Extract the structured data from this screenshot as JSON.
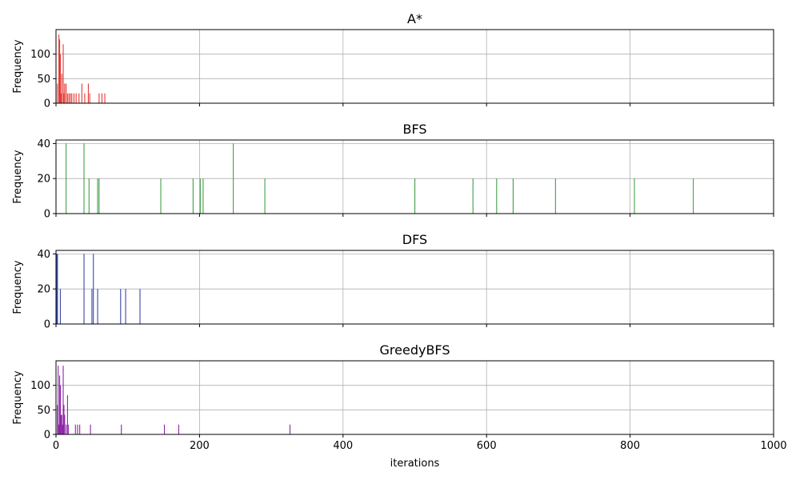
{
  "chart_data": [
    {
      "type": "bar",
      "title": "A*",
      "ylabel": "Frequency",
      "color": "#e53935",
      "xlim": [
        0,
        1000
      ],
      "ylim": [
        0,
        150
      ],
      "yticks": [
        0,
        50,
        100
      ],
      "grid": true,
      "bars": [
        {
          "x": 2,
          "y": 40
        },
        {
          "x": 4,
          "y": 140
        },
        {
          "x": 5,
          "y": 130
        },
        {
          "x": 6,
          "y": 100
        },
        {
          "x": 7,
          "y": 20
        },
        {
          "x": 8,
          "y": 60
        },
        {
          "x": 10,
          "y": 120
        },
        {
          "x": 11,
          "y": 20
        },
        {
          "x": 12,
          "y": 40
        },
        {
          "x": 14,
          "y": 40
        },
        {
          "x": 16,
          "y": 20
        },
        {
          "x": 18,
          "y": 20
        },
        {
          "x": 20,
          "y": 20
        },
        {
          "x": 22,
          "y": 20
        },
        {
          "x": 25,
          "y": 20
        },
        {
          "x": 28,
          "y": 20
        },
        {
          "x": 32,
          "y": 20
        },
        {
          "x": 36,
          "y": 40
        },
        {
          "x": 40,
          "y": 20
        },
        {
          "x": 45,
          "y": 40
        },
        {
          "x": 47,
          "y": 20
        },
        {
          "x": 60,
          "y": 20
        },
        {
          "x": 64,
          "y": 20
        },
        {
          "x": 68,
          "y": 20
        }
      ]
    },
    {
      "type": "bar",
      "title": "BFS",
      "ylabel": "Frequency",
      "color": "#43a047",
      "xlim": [
        0,
        1000
      ],
      "ylim": [
        0,
        42
      ],
      "yticks": [
        0,
        20,
        40
      ],
      "grid": true,
      "bars": [
        {
          "x": 14,
          "y": 40
        },
        {
          "x": 39,
          "y": 40
        },
        {
          "x": 46,
          "y": 20
        },
        {
          "x": 58,
          "y": 20
        },
        {
          "x": 60,
          "y": 20
        },
        {
          "x": 146,
          "y": 20
        },
        {
          "x": 191,
          "y": 20
        },
        {
          "x": 201,
          "y": 20
        },
        {
          "x": 205,
          "y": 20
        },
        {
          "x": 247,
          "y": 40
        },
        {
          "x": 291,
          "y": 20
        },
        {
          "x": 500,
          "y": 20
        },
        {
          "x": 581,
          "y": 20
        },
        {
          "x": 614,
          "y": 20
        },
        {
          "x": 637,
          "y": 20
        },
        {
          "x": 696,
          "y": 20
        },
        {
          "x": 806,
          "y": 20
        },
        {
          "x": 888,
          "y": 20
        }
      ]
    },
    {
      "type": "bar",
      "title": "DFS",
      "ylabel": "Frequency",
      "color": "#3949ab",
      "xlim": [
        0,
        1000
      ],
      "ylim": [
        0,
        42
      ],
      "yticks": [
        0,
        20,
        40
      ],
      "grid": true,
      "bars": [
        {
          "x": 1,
          "y": 40
        },
        {
          "x": 2,
          "y": 40
        },
        {
          "x": 6,
          "y": 20
        },
        {
          "x": 39,
          "y": 40
        },
        {
          "x": 50,
          "y": 20
        },
        {
          "x": 52,
          "y": 40
        },
        {
          "x": 58,
          "y": 20
        },
        {
          "x": 90,
          "y": 20
        },
        {
          "x": 97,
          "y": 20
        },
        {
          "x": 117,
          "y": 20
        }
      ]
    },
    {
      "type": "bar",
      "title": "GreedyBFS",
      "ylabel": "Frequency",
      "color": "#8e24aa",
      "xlim": [
        0,
        1000
      ],
      "ylim": [
        0,
        150
      ],
      "yticks": [
        0,
        50,
        100
      ],
      "grid": true,
      "xlabel": "iterations",
      "xticks": [
        0,
        200,
        400,
        600,
        800,
        1000
      ],
      "bars": [
        {
          "x": 2,
          "y": 60
        },
        {
          "x": 3,
          "y": 140
        },
        {
          "x": 4,
          "y": 20
        },
        {
          "x": 5,
          "y": 120
        },
        {
          "x": 6,
          "y": 100
        },
        {
          "x": 7,
          "y": 40
        },
        {
          "x": 8,
          "y": 40
        },
        {
          "x": 9,
          "y": 20
        },
        {
          "x": 10,
          "y": 140
        },
        {
          "x": 11,
          "y": 60
        },
        {
          "x": 12,
          "y": 40
        },
        {
          "x": 14,
          "y": 20
        },
        {
          "x": 16,
          "y": 80
        },
        {
          "x": 17,
          "y": 20
        },
        {
          "x": 27,
          "y": 20
        },
        {
          "x": 30,
          "y": 20
        },
        {
          "x": 33,
          "y": 20
        },
        {
          "x": 48,
          "y": 20
        },
        {
          "x": 91,
          "y": 20
        },
        {
          "x": 151,
          "y": 20
        },
        {
          "x": 171,
          "y": 20
        },
        {
          "x": 326,
          "y": 20
        }
      ]
    }
  ]
}
